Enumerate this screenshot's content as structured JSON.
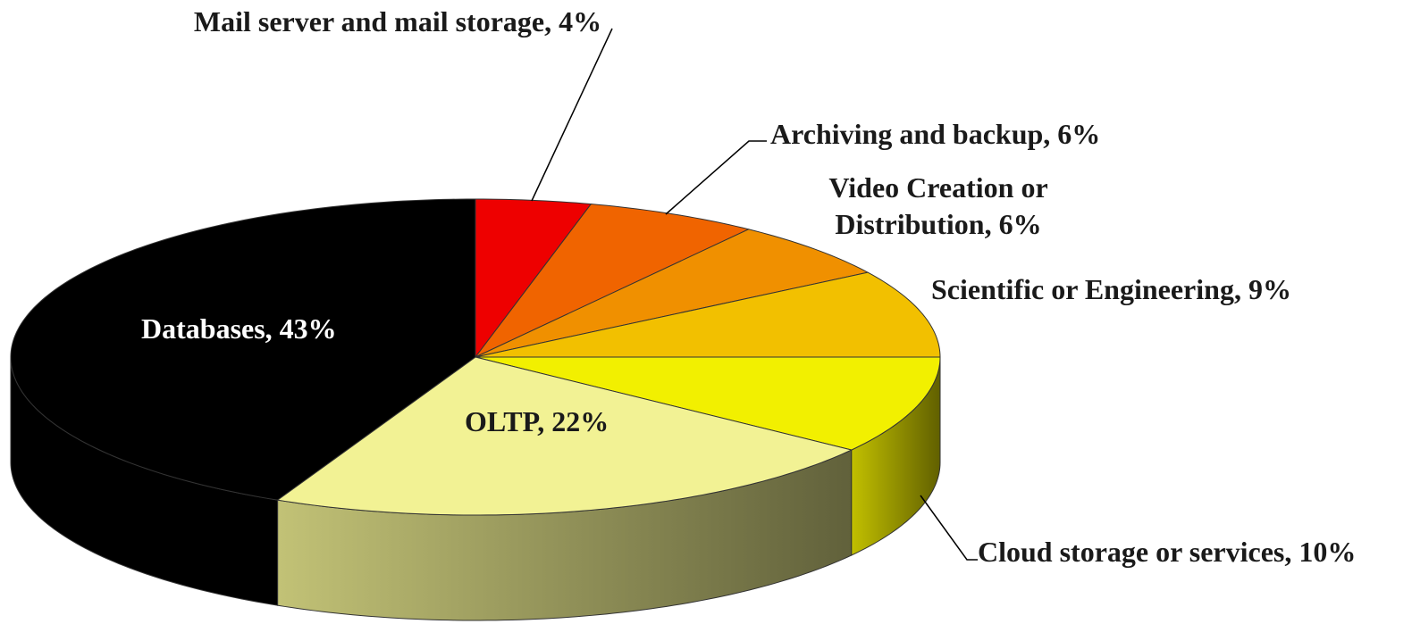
{
  "chart_data": {
    "type": "pie3d",
    "categories": [
      "Mail server and mail storage,",
      "Archiving and backup,",
      "Video Creation or Distribution,",
      "Scientific or Engineering,",
      "Cloud storage or services,",
      "OLTP,",
      "Databases,"
    ],
    "values": [
      4,
      6,
      6,
      9,
      10,
      22,
      43
    ],
    "value_labels": [
      "4%",
      "6%",
      "6%",
      "9%",
      "10%",
      "22%",
      "43%"
    ],
    "colors": [
      "#ee0000",
      "#f06400",
      "#f09000",
      "#f2c000",
      "#f2f000",
      "#f2f294",
      "#000000"
    ]
  }
}
